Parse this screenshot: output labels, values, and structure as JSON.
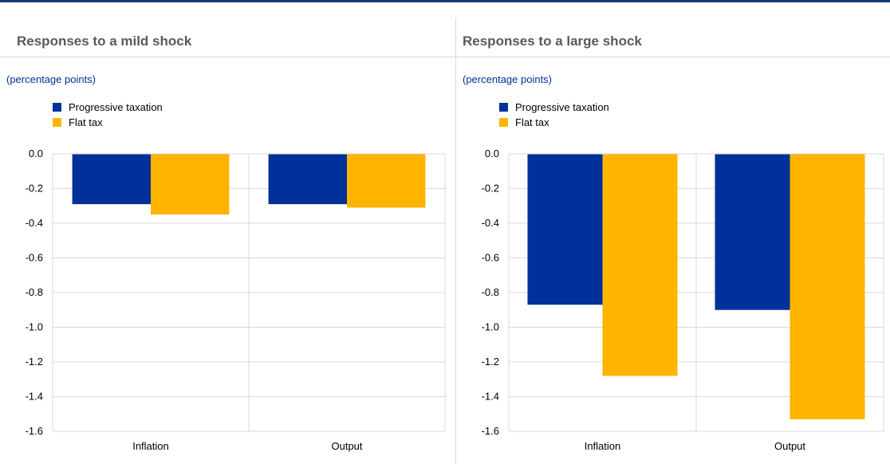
{
  "colors": {
    "progressive": "#00309a",
    "flat": "#ffb400",
    "top_rule": "#143a7a",
    "unit_text": "#00309a",
    "title_text": "#5a5a5a"
  },
  "chart_data": [
    {
      "type": "bar",
      "title": "Responses to a mild shock",
      "unit_label": "(percentage points)",
      "categories": [
        "Inflation",
        "Output"
      ],
      "series": [
        {
          "name": "Progressive taxation",
          "values": [
            -0.29,
            -0.29
          ]
        },
        {
          "name": "Flat tax",
          "values": [
            -0.35,
            -0.31
          ]
        }
      ],
      "ylim": [
        -1.6,
        0.0
      ],
      "yticks": [
        "0.0",
        "-0.2",
        "-0.4",
        "-0.6",
        "-0.8",
        "-1.0",
        "-1.2",
        "-1.4",
        "-1.6"
      ],
      "grid": true,
      "legend": "top-left"
    },
    {
      "type": "bar",
      "title": "Responses to a large shock",
      "unit_label": "(percentage points)",
      "categories": [
        "Inflation",
        "Output"
      ],
      "series": [
        {
          "name": "Progressive taxation",
          "values": [
            -0.87,
            -0.9
          ]
        },
        {
          "name": "Flat tax",
          "values": [
            -1.28,
            -1.53
          ]
        }
      ],
      "ylim": [
        -1.6,
        0.0
      ],
      "yticks": [
        "0.0",
        "-0.2",
        "-0.4",
        "-0.6",
        "-0.8",
        "-1.0",
        "-1.2",
        "-1.4",
        "-1.6"
      ],
      "grid": true,
      "legend": "top-left"
    }
  ]
}
